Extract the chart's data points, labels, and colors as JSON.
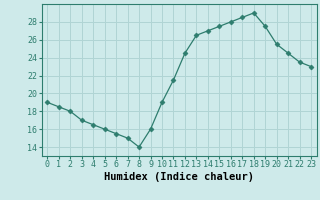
{
  "x": [
    0,
    1,
    2,
    3,
    4,
    5,
    6,
    7,
    8,
    9,
    10,
    11,
    12,
    13,
    14,
    15,
    16,
    17,
    18,
    19,
    20,
    21,
    22,
    23
  ],
  "y": [
    19.0,
    18.5,
    18.0,
    17.0,
    16.5,
    16.0,
    15.5,
    15.0,
    14.0,
    16.0,
    19.0,
    21.5,
    24.5,
    26.5,
    27.0,
    27.5,
    28.0,
    28.5,
    29.0,
    27.5,
    25.5,
    24.5,
    23.5,
    23.0
  ],
  "xlabel": "Humidex (Indice chaleur)",
  "xlim": [
    -0.5,
    23.5
  ],
  "ylim": [
    13.0,
    30.0
  ],
  "yticks": [
    14,
    16,
    18,
    20,
    22,
    24,
    26,
    28
  ],
  "line_color": "#2e7d6e",
  "marker": "D",
  "marker_size": 2.5,
  "bg_color": "#ceeaea",
  "grid_color": "#b0d4d4",
  "tick_color": "#2e7d6e",
  "label_fontsize": 7.5,
  "tick_fontsize": 6.0
}
